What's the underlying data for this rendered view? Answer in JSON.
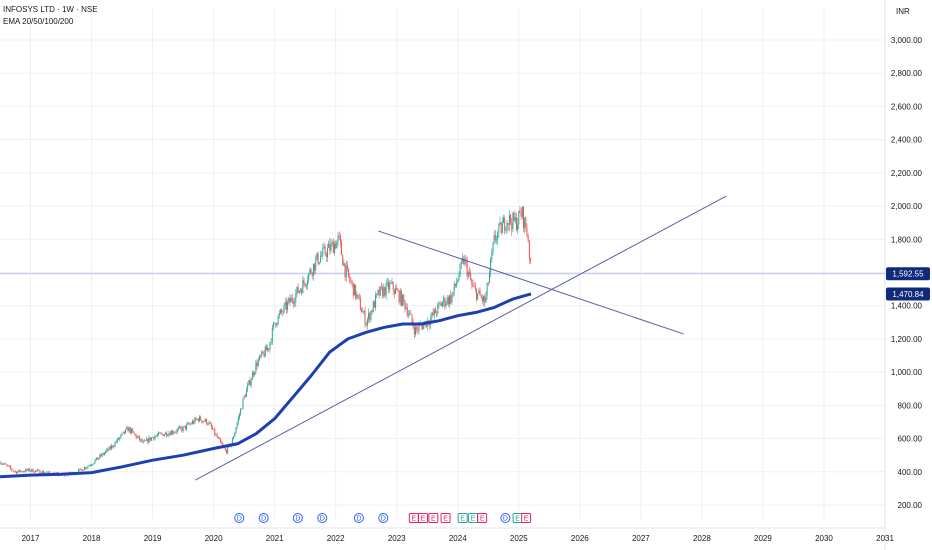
{
  "legend": {
    "title": "INFOSYS LTD · 1W · NSE",
    "indicator": "EMA 20/50/100/200"
  },
  "currency": "INR",
  "colors": {
    "grid": "#eef0f4",
    "up": "#26a69a",
    "down": "#ef5350",
    "ema": "#1e40af",
    "trend": "#5b5fa6",
    "price_line": "#b7c2ea",
    "tag_bg": "#0f2a7a",
    "dividend": "#2962ff",
    "earnings": "#e91e63",
    "earnings_alt": "#26a69a"
  },
  "chart_data": {
    "type": "candlestick",
    "symbol": "INFOSYS LTD",
    "interval": "1W",
    "exchange": "NSE",
    "x_ticks": [
      "2017",
      "2018",
      "2019",
      "2020",
      "2021",
      "2022",
      "2023",
      "2024",
      "2025",
      "2026",
      "2027",
      "2028",
      "2029",
      "2030",
      "2031"
    ],
    "y_ticks": [
      "200.00",
      "400.00",
      "600.00",
      "800.00",
      "1,000.00",
      "1,200.00",
      "1,400.00",
      "1,600.00",
      "1,800.00",
      "2,000.00",
      "2,200.00",
      "2,400.00",
      "2,600.00",
      "2,800.00",
      "3,000.00"
    ],
    "ylim": [
      100,
      3200
    ],
    "xlim": [
      2016.5,
      2031.0
    ],
    "price_path": [
      [
        2016.5,
        460
      ],
      [
        2016.75,
        400
      ],
      [
        2017.0,
        410
      ],
      [
        2017.25,
        395
      ],
      [
        2017.5,
        380
      ],
      [
        2017.75,
        395
      ],
      [
        2018.0,
        450
      ],
      [
        2018.3,
        540
      ],
      [
        2018.6,
        660
      ],
      [
        2018.85,
        570
      ],
      [
        2019.0,
        610
      ],
      [
        2019.3,
        640
      ],
      [
        2019.5,
        660
      ],
      [
        2019.75,
        720
      ],
      [
        2019.9,
        700
      ],
      [
        2020.0,
        640
      ],
      [
        2020.2,
        520
      ],
      [
        2020.3,
        580
      ],
      [
        2020.5,
        850
      ],
      [
        2020.7,
        1050
      ],
      [
        2020.9,
        1150
      ],
      [
        2021.0,
        1300
      ],
      [
        2021.2,
        1400
      ],
      [
        2021.45,
        1520
      ],
      [
        2021.7,
        1680
      ],
      [
        2021.95,
        1760
      ],
      [
        2022.05,
        1800
      ],
      [
        2022.15,
        1620
      ],
      [
        2022.35,
        1450
      ],
      [
        2022.5,
        1300
      ],
      [
        2022.7,
        1470
      ],
      [
        2022.9,
        1520
      ],
      [
        2023.0,
        1480
      ],
      [
        2023.15,
        1400
      ],
      [
        2023.3,
        1250
      ],
      [
        2023.55,
        1320
      ],
      [
        2023.75,
        1420
      ],
      [
        2023.9,
        1450
      ],
      [
        2024.1,
        1680
      ],
      [
        2024.25,
        1500
      ],
      [
        2024.45,
        1420
      ],
      [
        2024.6,
        1800
      ],
      [
        2024.8,
        1920
      ],
      [
        2024.95,
        1900
      ],
      [
        2025.05,
        1960
      ],
      [
        2025.15,
        1820
      ],
      [
        2025.2,
        1592.55
      ]
    ],
    "ema_200": [
      [
        2016.5,
        370
      ],
      [
        2017.0,
        380
      ],
      [
        2017.5,
        385
      ],
      [
        2018.0,
        395
      ],
      [
        2018.5,
        430
      ],
      [
        2019.0,
        470
      ],
      [
        2019.5,
        500
      ],
      [
        2020.0,
        540
      ],
      [
        2020.4,
        570
      ],
      [
        2020.7,
        630
      ],
      [
        2021.0,
        720
      ],
      [
        2021.3,
        850
      ],
      [
        2021.6,
        980
      ],
      [
        2021.9,
        1120
      ],
      [
        2022.2,
        1200
      ],
      [
        2022.5,
        1240
      ],
      [
        2022.8,
        1270
      ],
      [
        2023.1,
        1290
      ],
      [
        2023.4,
        1290
      ],
      [
        2023.7,
        1310
      ],
      [
        2024.0,
        1340
      ],
      [
        2024.3,
        1360
      ],
      [
        2024.6,
        1390
      ],
      [
        2024.9,
        1440
      ],
      [
        2025.2,
        1470.84
      ]
    ],
    "last_price": "1,592.55",
    "ema_value": "1,470.84",
    "trendlines": [
      {
        "from": [
          2022.7,
          1850
        ],
        "to": [
          2027.7,
          1230
        ]
      },
      {
        "from": [
          2019.7,
          350
        ],
        "to": [
          2028.4,
          2060
        ]
      }
    ],
    "events": [
      {
        "x": 2020.42,
        "label": "D",
        "kind": "dividend"
      },
      {
        "x": 2020.82,
        "label": "D",
        "kind": "dividend"
      },
      {
        "x": 2021.38,
        "label": "D",
        "kind": "dividend"
      },
      {
        "x": 2021.78,
        "label": "D",
        "kind": "dividend"
      },
      {
        "x": 2022.38,
        "label": "D",
        "kind": "dividend"
      },
      {
        "x": 2022.78,
        "label": "D",
        "kind": "dividend"
      },
      {
        "x": 2023.28,
        "label": "E",
        "kind": "earnings"
      },
      {
        "x": 2023.43,
        "label": "E",
        "kind": "earnings"
      },
      {
        "x": 2023.6,
        "label": "E",
        "kind": "earnings"
      },
      {
        "x": 2023.8,
        "label": "E",
        "kind": "earnings"
      },
      {
        "x": 2024.08,
        "label": "E",
        "kind": "earnings_alt"
      },
      {
        "x": 2024.25,
        "label": "E",
        "kind": "earnings_alt"
      },
      {
        "x": 2024.4,
        "label": "E",
        "kind": "earnings"
      },
      {
        "x": 2024.78,
        "label": "D",
        "kind": "dividend"
      },
      {
        "x": 2024.98,
        "label": "E",
        "kind": "earnings_alt"
      },
      {
        "x": 2025.12,
        "label": "E",
        "kind": "earnings"
      }
    ]
  }
}
